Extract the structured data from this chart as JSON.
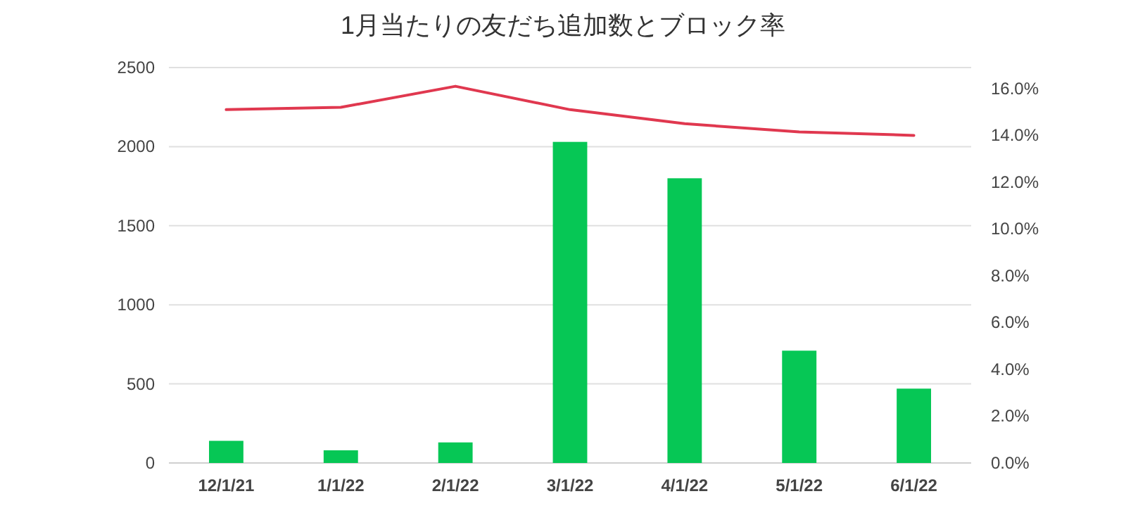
{
  "chart_data": {
    "type": "bar",
    "title": "1月当たりの友だち追加数とブロック率",
    "categories": [
      "12/1/21",
      "1/1/22",
      "2/1/22",
      "3/1/22",
      "4/1/22",
      "5/1/22",
      "6/1/22"
    ],
    "series": [
      {
        "color": "#06c755",
        "values": [
          140,
          80,
          130,
          2030,
          1800,
          710,
          470
        ]
      },
      {
        "type": "line",
        "axis": "y2",
        "color": "#e0384f",
        "values": [
          15.1,
          15.2,
          16.1,
          15.1,
          14.5,
          14.15,
          14.0
        ]
      }
    ],
    "ylim": [
      0,
      2500
    ],
    "yticks": [
      0,
      500,
      1000,
      1500,
      2000,
      2500
    ],
    "y2lim": [
      0,
      16.9
    ],
    "y2ticks": [
      {
        "value": 0,
        "label": "0.0%"
      },
      {
        "value": 2,
        "label": "2.0%"
      },
      {
        "value": 4,
        "label": "4.0%"
      },
      {
        "value": 6,
        "label": "6.0%"
      },
      {
        "value": 8,
        "label": "8.0%"
      },
      {
        "value": 10,
        "label": "10.0%"
      },
      {
        "value": 12,
        "label": "12.0%"
      },
      {
        "value": 14,
        "label": "14.0%"
      },
      {
        "value": 16,
        "label": "16.0%"
      }
    ],
    "grid": "y",
    "marker": "none",
    "line_style": "solid"
  }
}
